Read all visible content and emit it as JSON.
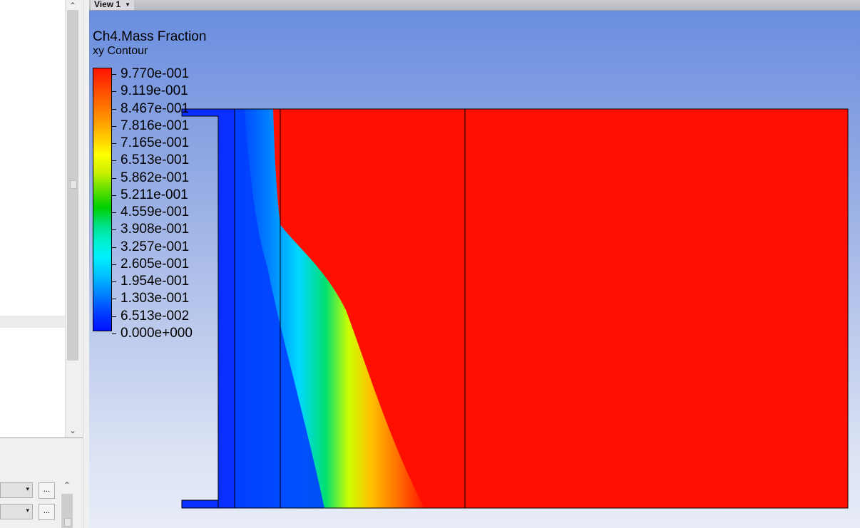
{
  "left_panel": {
    "scroll_up_icon": "chevron-up-icon",
    "scroll_down_icon": "chevron-down-icon",
    "combo_arrow_1": "▾",
    "combo_arrow_2": "▾",
    "dots_button_1": "...",
    "dots_button_2": "..."
  },
  "view": {
    "tab_label": "View 1",
    "tab_dropdown": "▼"
  },
  "plot": {
    "title": "Ch4.Mass Fraction",
    "subtitle": "xy Contour",
    "variable": "Ch4.Mass Fraction",
    "legend_values": [
      "9.770e-001",
      "9.119e-001",
      "8.467e-001",
      "7.816e-001",
      "7.165e-001",
      "6.513e-001",
      "5.862e-001",
      "5.211e-001",
      "4.559e-001",
      "3.908e-001",
      "3.257e-001",
      "2.605e-001",
      "1.954e-001",
      "1.303e-001",
      "6.513e-002",
      "0.000e+000"
    ],
    "colormap_top": "#ff1400",
    "colormap_bottom": "#0010ff",
    "domain_fill": "#ff0f00",
    "inlet_fill": "#0a2eff",
    "background_top": "#6a8ee0",
    "background_bottom": "#e8ecf8"
  }
}
